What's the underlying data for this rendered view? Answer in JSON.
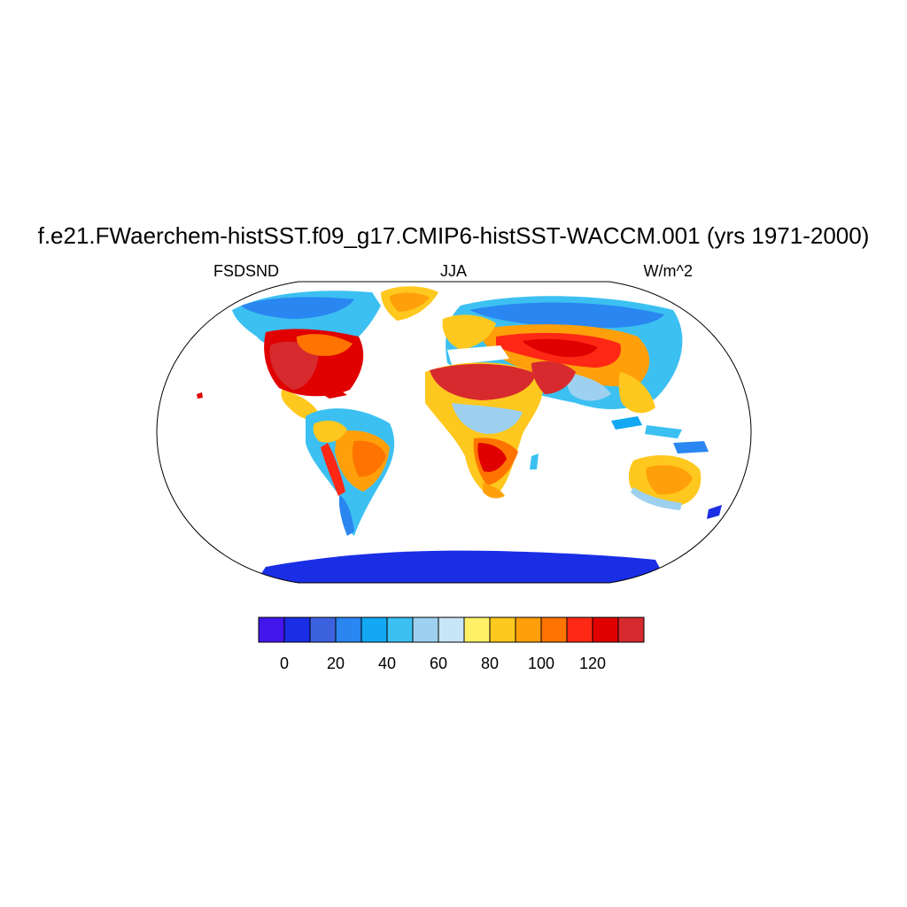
{
  "figure": {
    "title": "f.e21.FWaerchem-histSST.f09_g17.CMIP6-histSST-WACCM.001 (yrs 1971-2000)",
    "left_label": "FSDSND",
    "center_label": "JJA",
    "right_label": "W/m^2"
  },
  "colorbar": {
    "colors": [
      "#4416ee",
      "#1a2ee6",
      "#3d62e0",
      "#2a86f0",
      "#12a8f4",
      "#3cc0f2",
      "#9dd1ef",
      "#c7e6f7",
      "#fff068",
      "#ffc81e",
      "#ffa00a",
      "#ff7300",
      "#ff2814",
      "#e00000",
      "#d62a2e"
    ],
    "tick_labels": [
      "0",
      "20",
      "40",
      "60",
      "80",
      "100",
      "120"
    ]
  },
  "map": {
    "projection": "Robinson",
    "variable": "FSDSND",
    "ocean_color": "#ffffff"
  }
}
